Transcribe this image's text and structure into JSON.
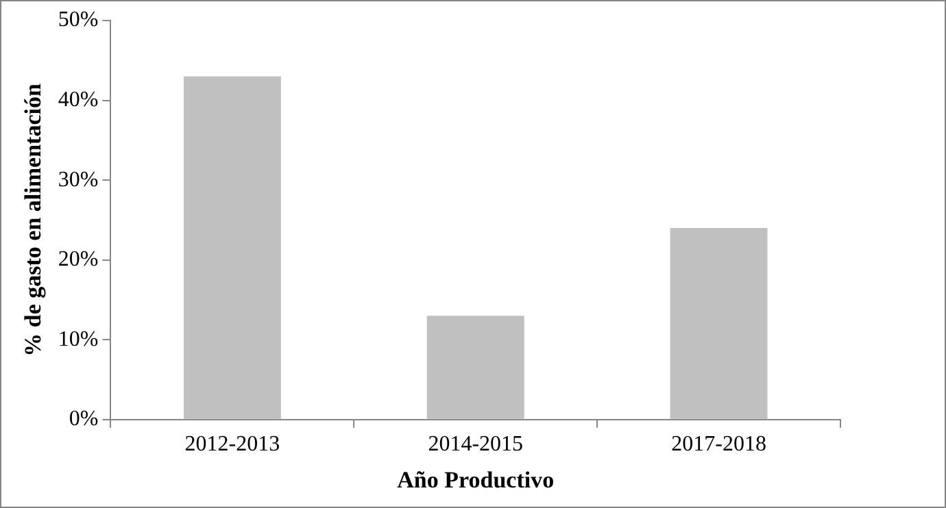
{
  "chart_data": {
    "type": "bar",
    "xlabel": "Año Productivo",
    "ylabel": "% de gasto en alimentación",
    "categories": [
      "2012-2013",
      "2014-2015",
      "2017-2018"
    ],
    "values": [
      43,
      13,
      24
    ],
    "color": "#c0c0c0",
    "ylim": [
      0,
      50
    ],
    "yticks": [
      {
        "value": 0,
        "label": "0%"
      },
      {
        "value": 10,
        "label": "10%"
      },
      {
        "value": 20,
        "label": "20%"
      },
      {
        "value": 30,
        "label": "30%"
      },
      {
        "value": 40,
        "label": "40%"
      },
      {
        "value": 50,
        "label": "50%"
      }
    ],
    "grid": false,
    "legend": false
  }
}
